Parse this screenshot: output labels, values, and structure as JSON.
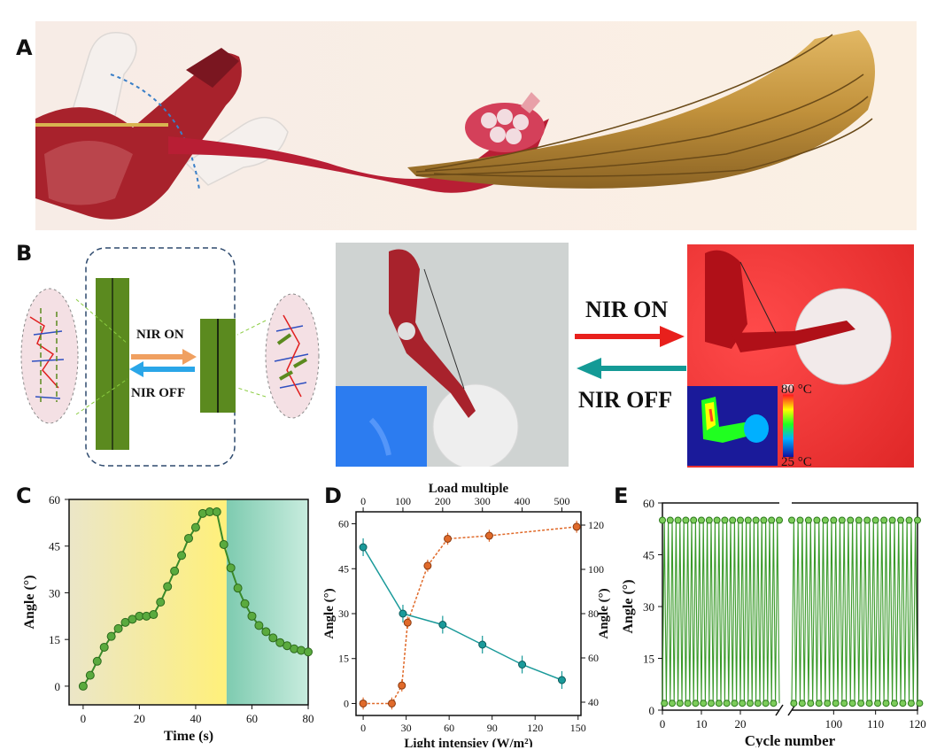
{
  "panels": {
    "a": "A",
    "b": "B",
    "c": "C",
    "d": "D",
    "e": "E"
  },
  "panel_b": {
    "nir_on": "NIR ON",
    "nir_off": "NIR OFF",
    "photo_nir_on": "NIR ON",
    "photo_nir_off": "NIR OFF",
    "thermal_max": "80 °C",
    "thermal_min": "25 °C"
  },
  "colors": {
    "green_fiber": "#5b8a1f",
    "orange_arrow": "#f0a060",
    "blue_arrow": "#2aa6e8",
    "red_arrow": "#e8201c",
    "teal_arrow": "#149a96",
    "muscle_red": "#a8222c",
    "fiber_gold": "#c8a040"
  },
  "chart_data": [
    {
      "panel": "C",
      "type": "line",
      "xlabel": "Time (s)",
      "ylabel": "Angle (°)",
      "xlim": [
        -5,
        80
      ],
      "ylim": [
        -6,
        60
      ],
      "xticks": [
        0,
        20,
        40,
        60,
        80
      ],
      "yticks": [
        0,
        15,
        30,
        45,
        60
      ],
      "background": "yellow (NIR on) region from 0 to ~51 s, green region from ~51 to 80 s",
      "series": [
        {
          "x": [
            0,
            2.5,
            5,
            7.5,
            10,
            12.5,
            15,
            17.5,
            20,
            22.5,
            25,
            27.5,
            30,
            32.5,
            35,
            37.5,
            40,
            42.5,
            45,
            47.5,
            50,
            52.5,
            55,
            57.5,
            60,
            62.5,
            65,
            67.5,
            70,
            72.5,
            75,
            77.5,
            80
          ],
          "y": [
            0,
            3.5,
            8,
            12.5,
            16,
            18.5,
            20.5,
            21.5,
            22.5,
            22.5,
            23,
            27,
            32,
            37,
            42,
            47.5,
            51,
            55.5,
            56,
            56,
            45.5,
            38,
            31.5,
            26.5,
            22.5,
            19.5,
            17.5,
            15.5,
            14,
            13,
            12,
            11.5,
            11
          ]
        }
      ]
    },
    {
      "panel": "D",
      "type": "line",
      "xlabel": "Light intensiey (W/m²)",
      "x2label": "Load multiple",
      "ylabel": "Angle (°)",
      "y2label": "Angle (°)",
      "xlim": [
        -5,
        152
      ],
      "ylim": [
        -4,
        64
      ],
      "xticks": [
        0,
        30,
        60,
        90,
        120,
        150
      ],
      "yticks": [
        0,
        15,
        30,
        45,
        60
      ],
      "x2lim": [
        -18,
        548
      ],
      "x2ticks": [
        0,
        100,
        200,
        300,
        400,
        500
      ],
      "y2lim": [
        34,
        126
      ],
      "y2ticks": [
        40,
        60,
        80,
        100,
        120
      ],
      "series": [
        {
          "axis": "bottom-left",
          "color": "#e06a2a",
          "x": [
            0,
            20,
            27,
            31,
            45,
            59,
            88,
            149
          ],
          "y": [
            0,
            0,
            6,
            27,
            46,
            55,
            56,
            59
          ]
        },
        {
          "axis": "top-right",
          "color": "#1a9a9a",
          "x": [
            0,
            100,
            200,
            300,
            400,
            500
          ],
          "y": [
            110,
            80,
            75,
            66,
            57,
            50
          ]
        }
      ]
    },
    {
      "panel": "E",
      "type": "line",
      "xlabel": "Cycle number",
      "ylabel": "Angle (°)",
      "xlim": [
        0,
        120
      ],
      "ylim": [
        0,
        60
      ],
      "axis_break": [
        30,
        90
      ],
      "xticks": [
        0,
        10,
        20,
        100,
        110,
        120
      ],
      "yticks": [
        0,
        15,
        30,
        45,
        60
      ],
      "series": [
        {
          "name": "oscillating angle",
          "min": 2,
          "max": 55
        }
      ]
    }
  ]
}
